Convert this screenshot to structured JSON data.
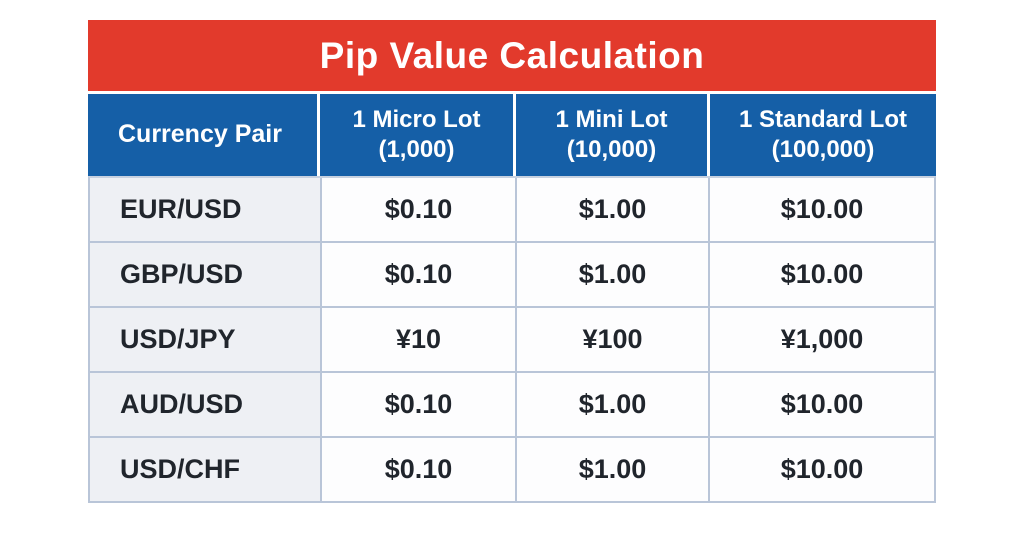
{
  "title": "Pip Value Calculation",
  "colors": {
    "title_bar": "#e23a2c",
    "header_row": "#155fa7",
    "pair_column_bg": "#eef0f4",
    "cell_bg": "#fdfdfe",
    "grid_border": "#b9c5d8",
    "text_dark": "#20252c",
    "text_light": "#ffffff"
  },
  "table": {
    "headers": [
      {
        "line1": "Currency Pair",
        "line2": ""
      },
      {
        "line1": "1 Micro Lot",
        "line2": "(1,000)"
      },
      {
        "line1": "1 Mini Lot",
        "line2": "(10,000)"
      },
      {
        "line1": "1 Standard Lot",
        "line2": "(100,000)"
      }
    ],
    "rows": [
      {
        "pair": "EUR/USD",
        "micro": "$0.10",
        "mini": "$1.00",
        "standard": "$10.00"
      },
      {
        "pair": "GBP/USD",
        "micro": "$0.10",
        "mini": "$1.00",
        "standard": "$10.00"
      },
      {
        "pair": "USD/JPY",
        "micro": "¥10",
        "mini": "¥100",
        "standard": "¥1,000"
      },
      {
        "pair": "AUD/USD",
        "micro": "$0.10",
        "mini": "$1.00",
        "standard": "$10.00"
      },
      {
        "pair": "USD/CHF",
        "micro": "$0.10",
        "mini": "$1.00",
        "standard": "$10.00"
      }
    ]
  },
  "chart_data": {
    "type": "table",
    "title": "Pip Value Calculation",
    "columns": [
      "Currency Pair",
      "1 Micro Lot (1,000)",
      "1 Mini Lot (10,000)",
      "1 Standard Lot (100,000)"
    ],
    "rows": [
      [
        "EUR/USD",
        "$0.10",
        "$1.00",
        "$10.00"
      ],
      [
        "GBP/USD",
        "$0.10",
        "$1.00",
        "$10.00"
      ],
      [
        "USD/JPY",
        "¥10",
        "¥100",
        "¥1,000"
      ],
      [
        "AUD/USD",
        "$0.10",
        "$1.00",
        "$10.00"
      ],
      [
        "USD/CHF",
        "$0.10",
        "$1.00",
        "$10.00"
      ]
    ]
  }
}
